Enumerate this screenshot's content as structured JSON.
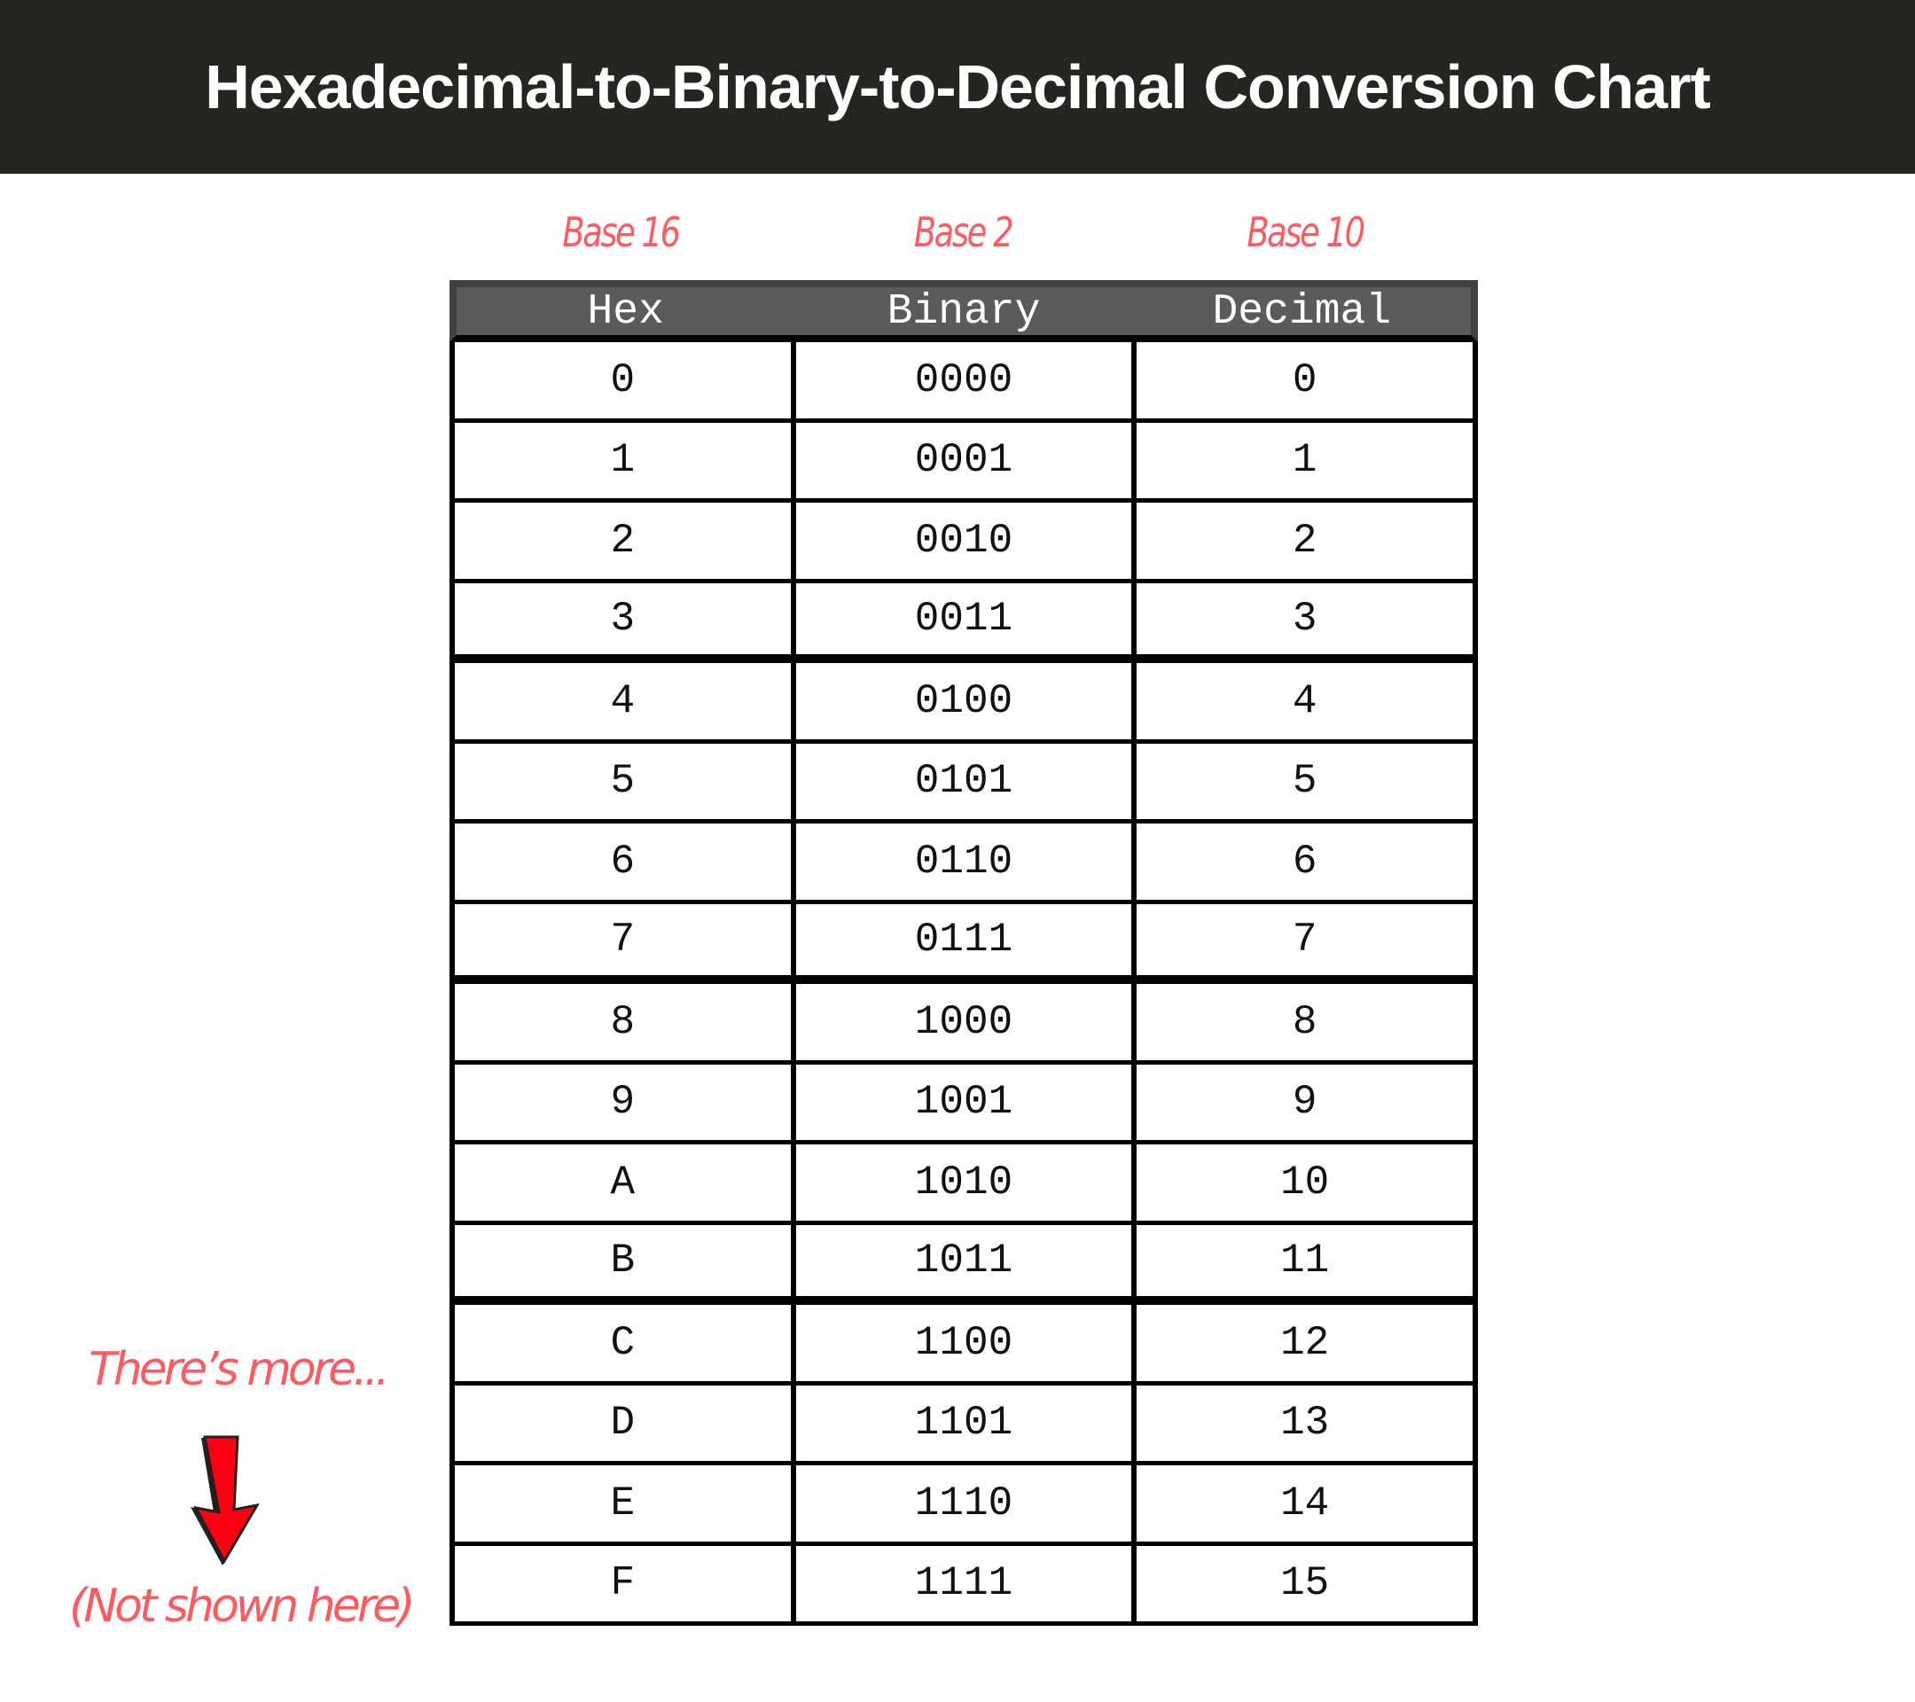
{
  "title": "Hexadecimal-to-Binary-to-Decimal Conversion Chart",
  "base_labels": [
    "Base 16",
    "Base 2",
    "Base 10"
  ],
  "table": {
    "headers": [
      "Hex",
      "Binary",
      "Decimal"
    ],
    "rows": [
      [
        "0",
        "0000",
        "0"
      ],
      [
        "1",
        "0001",
        "1"
      ],
      [
        "2",
        "0010",
        "2"
      ],
      [
        "3",
        "0011",
        "3"
      ],
      [
        "4",
        "0100",
        "4"
      ],
      [
        "5",
        "0101",
        "5"
      ],
      [
        "6",
        "0110",
        "6"
      ],
      [
        "7",
        "0111",
        "7"
      ],
      [
        "8",
        "1000",
        "8"
      ],
      [
        "9",
        "1001",
        "9"
      ],
      [
        "A",
        "1010",
        "10"
      ],
      [
        "B",
        "1011",
        "11"
      ],
      [
        "C",
        "1100",
        "12"
      ],
      [
        "D",
        "1101",
        "13"
      ],
      [
        "E",
        "1110",
        "14"
      ],
      [
        "F",
        "1111",
        "15"
      ]
    ]
  },
  "note": {
    "top": "There’s more...",
    "bottom": "(Not shown here)",
    "icon": "arrow-down-icon",
    "arrow_color": "#ff0013"
  },
  "colors": {
    "title_bar": "#262522",
    "annotation": "#ff5a5f",
    "header": "#5c5b59"
  }
}
